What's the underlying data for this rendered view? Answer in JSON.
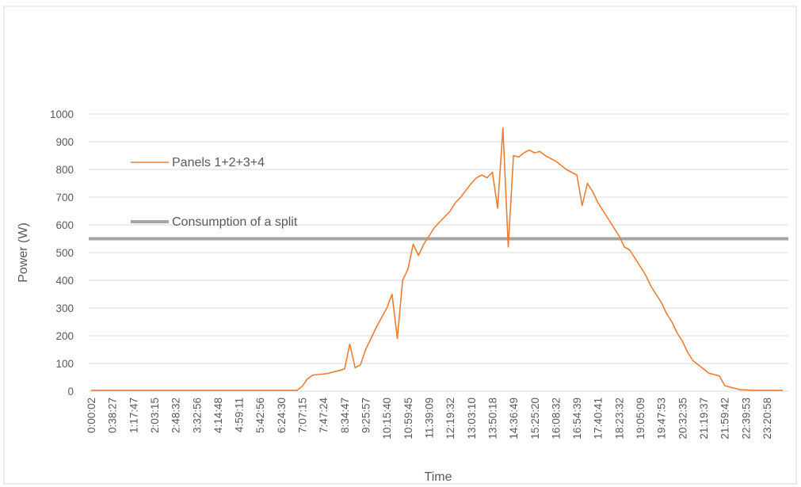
{
  "chart_data": {
    "type": "line",
    "x_label": "Time",
    "y_label": "Power (W)",
    "categories": [
      "0:00:02",
      null,
      null,
      null,
      "0:38:27",
      null,
      null,
      null,
      "1:17:47",
      null,
      null,
      null,
      "2:03:15",
      null,
      null,
      null,
      "2:48:32",
      null,
      null,
      null,
      "3:32:56",
      null,
      null,
      null,
      "4:14:48",
      null,
      null,
      null,
      "4:59:11",
      null,
      null,
      null,
      "5:42:56",
      null,
      null,
      null,
      "6:24:30",
      null,
      null,
      null,
      "7:07:15",
      null,
      null,
      null,
      "7:47:24",
      null,
      null,
      null,
      "8:34:47",
      null,
      null,
      null,
      "9:25:57",
      null,
      null,
      null,
      "10:15:40",
      null,
      null,
      null,
      "10:59:45",
      null,
      null,
      null,
      "11:39:09",
      null,
      null,
      null,
      "12:19:32",
      null,
      null,
      null,
      "13:03:10",
      null,
      null,
      null,
      "13:50:18",
      null,
      null,
      null,
      "14:36:49",
      null,
      null,
      null,
      "15:25:20",
      null,
      null,
      null,
      "16:08:32",
      null,
      null,
      null,
      "16:54:39",
      null,
      null,
      null,
      "17:40:41",
      null,
      null,
      null,
      "18:23:32",
      null,
      null,
      null,
      "19:05:09",
      null,
      null,
      null,
      "19:47:53",
      null,
      null,
      null,
      "20:32:35",
      null,
      null,
      null,
      "21:19:37",
      null,
      null,
      null,
      "21:59:42",
      null,
      null,
      null,
      "22:39:53",
      null,
      null,
      null,
      "23:20:58",
      null,
      null,
      null
    ],
    "series": [
      {
        "name": "Panels 1+2+3+4",
        "color": "#ed7d31",
        "values": [
          3,
          3,
          3,
          3,
          3,
          3,
          3,
          3,
          3,
          3,
          3,
          3,
          3,
          3,
          3,
          3,
          3,
          3,
          3,
          3,
          3,
          3,
          3,
          3,
          3,
          3,
          3,
          3,
          3,
          3,
          3,
          3,
          3,
          3,
          3,
          3,
          3,
          3,
          3,
          3,
          18,
          45,
          58,
          60,
          62,
          65,
          70,
          75,
          80,
          170,
          85,
          95,
          150,
          190,
          230,
          265,
          300,
          350,
          190,
          400,
          440,
          530,
          490,
          530,
          560,
          590,
          610,
          630,
          650,
          680,
          700,
          725,
          750,
          770,
          780,
          770,
          790,
          660,
          950,
          520,
          850,
          845,
          860,
          870,
          860,
          865,
          850,
          840,
          830,
          815,
          800,
          790,
          780,
          670,
          750,
          720,
          680,
          650,
          620,
          590,
          560,
          520,
          510,
          480,
          450,
          420,
          380,
          350,
          320,
          280,
          250,
          210,
          180,
          140,
          110,
          95,
          80,
          65,
          60,
          55,
          20,
          15,
          10,
          5,
          5,
          3,
          3,
          3,
          3,
          3,
          3,
          3
        ]
      }
    ],
    "reference_line": {
      "name": "Consumption of a split",
      "color": "#a5a5a5",
      "value": 550
    },
    "ylim": [
      0,
      1000
    ],
    "yticks": [
      0,
      100,
      200,
      300,
      400,
      500,
      600,
      700,
      800,
      900,
      1000
    ],
    "grid": true,
    "legend": "upper left"
  }
}
